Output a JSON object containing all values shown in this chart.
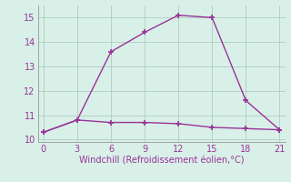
{
  "line1_x": [
    0,
    3,
    6,
    9,
    12,
    15,
    18,
    21
  ],
  "line1_y": [
    10.3,
    10.8,
    13.6,
    14.4,
    15.1,
    15.0,
    11.6,
    10.4
  ],
  "line2_x": [
    0,
    3,
    6,
    9,
    12,
    15,
    18,
    21
  ],
  "line2_y": [
    10.3,
    10.8,
    10.7,
    10.7,
    10.65,
    10.5,
    10.45,
    10.4
  ],
  "line_color": "#993399",
  "bg_color": "#d8f0e8",
  "xlabel": "Windchill (Refroidissement éolien,°C)",
  "xlim": [
    -0.5,
    21.5
  ],
  "ylim": [
    9.9,
    15.5
  ],
  "xticks": [
    0,
    3,
    6,
    9,
    12,
    15,
    18,
    21
  ],
  "yticks": [
    10,
    11,
    12,
    13,
    14,
    15
  ],
  "marker": "+",
  "marker_size": 5,
  "line_width": 1.0,
  "xlabel_fontsize": 7,
  "tick_fontsize": 7,
  "grid_color": "#b0ccc0",
  "grid_linewidth": 0.6
}
